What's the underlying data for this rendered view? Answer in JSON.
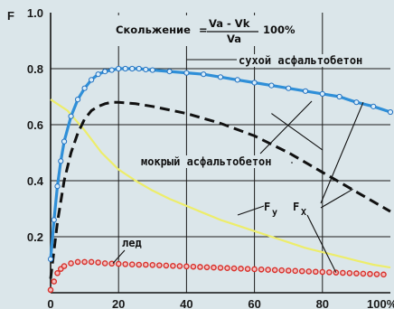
{
  "chart_data": {
    "type": "line",
    "title_parts": {
      "label": "Скольжение",
      "equals": "=",
      "numerator": "Va - Vk",
      "denominator": "Va",
      "suffix": "100%"
    },
    "ylabel": "F",
    "xlim": [
      0,
      100
    ],
    "ylim": [
      0,
      1.0
    ],
    "x_ticks": [
      "0",
      "20",
      "40",
      "60",
      "80",
      "100%"
    ],
    "y_ticks": [
      "0.2",
      "0.4",
      "0.6",
      "0.8",
      "1.0"
    ],
    "grid": true,
    "series": [
      {
        "name": "сухой асфальтобетон",
        "style": "solid-with-markers",
        "color": "#2f8fd8",
        "x": [
          0,
          1,
          2,
          3,
          4,
          6,
          8,
          10,
          12,
          14,
          16,
          18,
          20,
          22,
          24,
          26,
          28,
          30,
          35,
          40,
          45,
          50,
          55,
          60,
          65,
          70,
          75,
          80,
          85,
          90,
          95,
          100
        ],
        "y": [
          0.12,
          0.26,
          0.38,
          0.47,
          0.54,
          0.63,
          0.69,
          0.73,
          0.76,
          0.78,
          0.79,
          0.795,
          0.8,
          0.8,
          0.8,
          0.8,
          0.797,
          0.795,
          0.79,
          0.785,
          0.78,
          0.77,
          0.76,
          0.75,
          0.74,
          0.73,
          0.72,
          0.71,
          0.7,
          0.68,
          0.665,
          0.645
        ]
      },
      {
        "name": "мокрый асфальтобетон",
        "style": "dashed",
        "color": "#111111",
        "x": [
          0,
          2,
          4,
          6,
          8,
          10,
          12,
          14,
          16,
          18,
          20,
          25,
          30,
          40,
          50,
          60,
          70,
          80,
          90,
          100
        ],
        "y": [
          0.05,
          0.25,
          0.4,
          0.5,
          0.57,
          0.62,
          0.65,
          0.665,
          0.675,
          0.68,
          0.68,
          0.675,
          0.665,
          0.64,
          0.605,
          0.56,
          0.5,
          0.43,
          0.36,
          0.29
        ]
      },
      {
        "name": "лед",
        "style": "markers",
        "color": "#d8302a",
        "x": [
          0,
          1,
          2,
          3,
          4,
          6,
          8,
          10,
          12,
          14,
          16,
          18,
          20,
          22,
          24,
          26,
          28,
          30,
          32,
          34,
          36,
          38,
          40,
          42,
          44,
          46,
          48,
          50,
          52,
          54,
          56,
          58,
          60,
          62,
          64,
          66,
          68,
          70,
          72,
          74,
          76,
          78,
          80,
          82,
          84,
          86,
          88,
          90,
          92,
          94,
          96,
          98
        ],
        "y": [
          0.01,
          0.04,
          0.07,
          0.085,
          0.095,
          0.105,
          0.11,
          0.11,
          0.11,
          0.108,
          0.105,
          0.104,
          0.103,
          0.102,
          0.101,
          0.1,
          0.1,
          0.099,
          0.098,
          0.097,
          0.096,
          0.095,
          0.094,
          0.093,
          0.092,
          0.091,
          0.09,
          0.089,
          0.088,
          0.087,
          0.086,
          0.085,
          0.084,
          0.083,
          0.082,
          0.081,
          0.08,
          0.079,
          0.078,
          0.077,
          0.076,
          0.075,
          0.074,
          0.073,
          0.072,
          0.071,
          0.07,
          0.069,
          0.068,
          0.067,
          0.066,
          0.065
        ]
      },
      {
        "name": "Fy",
        "style": "solid",
        "color": "#eded6a",
        "x": [
          0,
          5,
          10,
          15,
          20,
          25,
          30,
          35,
          40,
          45,
          50,
          55,
          60,
          65,
          70,
          75,
          80,
          85,
          90,
          95,
          100
        ],
        "y": [
          0.69,
          0.65,
          0.58,
          0.5,
          0.44,
          0.4,
          0.365,
          0.335,
          0.31,
          0.285,
          0.26,
          0.24,
          0.22,
          0.2,
          0.18,
          0.16,
          0.145,
          0.13,
          0.115,
          0.1,
          0.09
        ]
      }
    ],
    "annotations": {
      "dry": "сухой асфальтобетон",
      "wet": "мокрый асфальтобетон",
      "ice": "лед",
      "fy_main": "F",
      "fy_sub": "y",
      "fx_main": "F",
      "fx_sub": "X"
    }
  }
}
